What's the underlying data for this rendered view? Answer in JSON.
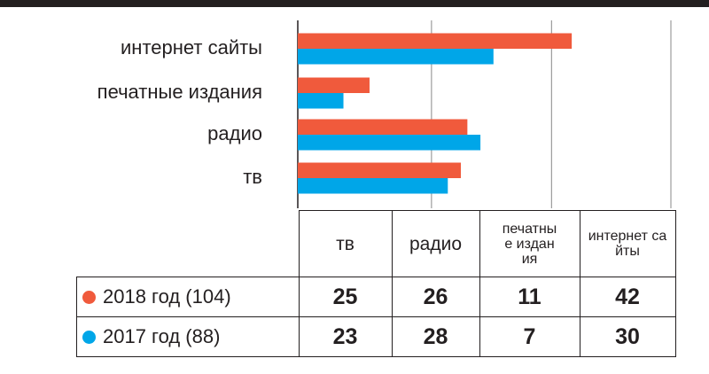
{
  "chart_data": {
    "type": "bar",
    "orientation": "horizontal",
    "categories": [
      "интернет сайты",
      "печатные издания",
      "радио",
      "тв"
    ],
    "series": [
      {
        "name": "2018 год (104)",
        "color": "#f05a3c",
        "values": [
          42,
          11,
          26,
          25
        ]
      },
      {
        "name": "2017 год (88)",
        "color": "#00a6e8",
        "values": [
          30,
          7,
          28,
          23
        ]
      }
    ],
    "xlim": [
      0,
      57.2
    ],
    "xticks": [
      0,
      20.5,
      38.9,
      57.2
    ],
    "grid": true
  }
}
